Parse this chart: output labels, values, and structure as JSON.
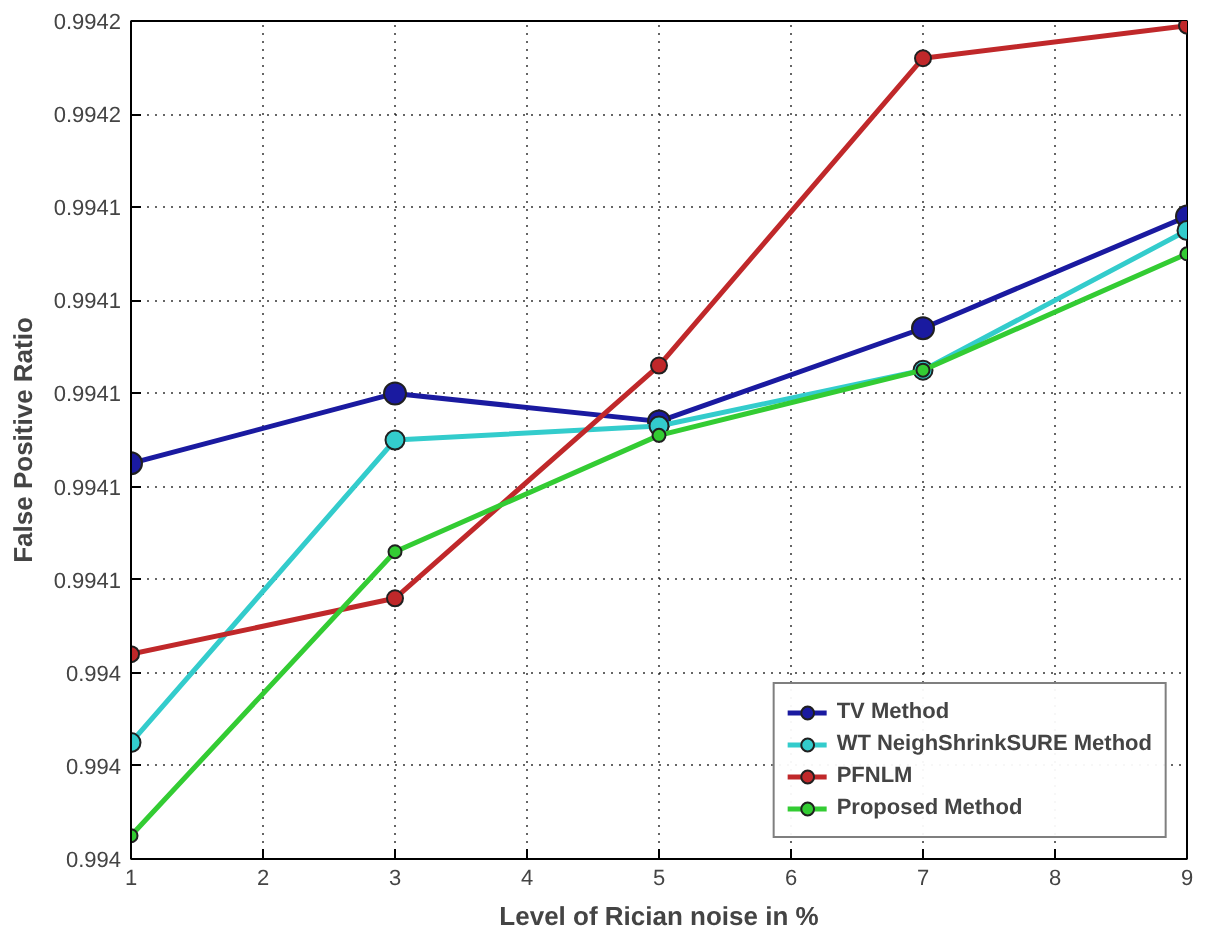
{
  "chart_data": {
    "type": "line",
    "xlabel": "Level of Rician noise in %",
    "ylabel": "False Positive Ratio",
    "x": [
      1,
      3,
      5,
      7,
      9
    ],
    "series": [
      {
        "name": "TV Method",
        "color": "#1a1aa0",
        "values": [
          0.994085,
          0.9941,
          0.994094,
          0.994114,
          0.994138
        ]
      },
      {
        "name": "WT NeighShrinkSURE Method",
        "color": "#33cccc",
        "values": [
          0.994025,
          0.99409,
          0.994093,
          0.994105,
          0.994135
        ]
      },
      {
        "name": "PFNLM",
        "color": "#c0282a",
        "values": [
          0.994044,
          0.994056,
          0.994106,
          0.994172,
          0.994179
        ]
      },
      {
        "name": "Proposed Method",
        "color": "#33cc33",
        "values": [
          0.994005,
          0.994066,
          0.994091,
          0.994105,
          0.99413
        ]
      }
    ],
    "xlim": [
      1,
      9
    ],
    "xticks": [
      1,
      2,
      3,
      4,
      5,
      6,
      7,
      8,
      9
    ],
    "ylim": [
      0.994,
      0.99418
    ],
    "yticks": [
      {
        "value": 0.994,
        "label": "0.994"
      },
      {
        "value": 0.99402,
        "label": "0.994"
      },
      {
        "value": 0.99404,
        "label": "0.994"
      },
      {
        "value": 0.99406,
        "label": "0.9941"
      },
      {
        "value": 0.99408,
        "label": "0.9941"
      },
      {
        "value": 0.9941,
        "label": "0.9941"
      },
      {
        "value": 0.99412,
        "label": "0.9941"
      },
      {
        "value": 0.99414,
        "label": "0.9941"
      },
      {
        "value": 0.99416,
        "label": "0.9942"
      },
      {
        "value": 0.99418,
        "label": "0.9942"
      }
    ],
    "grid": true,
    "legend": "bottom right",
    "marker": "circle",
    "line_style": "solid"
  }
}
